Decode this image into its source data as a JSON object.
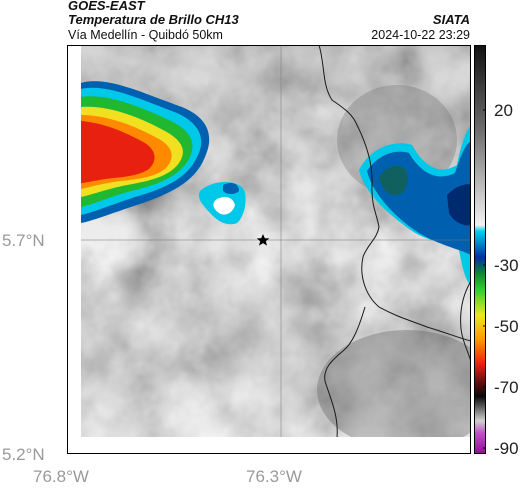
{
  "header": {
    "satellite": "GOES-EAST",
    "product": "Temperatura de Brillo CH13",
    "region": "Vía Medellín - Quibdó 50km",
    "agency": "SIATA",
    "datetime": "2024-10-22 23:29"
  },
  "map": {
    "lon_ticks": [
      {
        "value": -76.8,
        "label": "76.8°W"
      },
      {
        "value": -76.3,
        "label": "76.3°W"
      }
    ],
    "lat_ticks": [
      {
        "value": 5.7,
        "label": "5.7°N"
      },
      {
        "value": 5.2,
        "label": "5.2°N"
      }
    ],
    "marker": "star-icon",
    "grid": true
  },
  "colorbar": {
    "ticks": [
      {
        "value": 20,
        "label": "20"
      },
      {
        "value": -30,
        "label": "-30"
      },
      {
        "value": -50,
        "label": "-50"
      },
      {
        "value": -70,
        "label": "-70"
      },
      {
        "value": -90,
        "label": "-90"
      }
    ],
    "colors": {
      "warm_gray": "#7a7a7a",
      "cyan": "#00c8e8",
      "blue": "#0050a0",
      "green": "#20b830",
      "yellow": "#f0e020",
      "orange": "#ff8a00",
      "red": "#e82010",
      "black": "#101010",
      "magenta": "#c040c0"
    }
  }
}
